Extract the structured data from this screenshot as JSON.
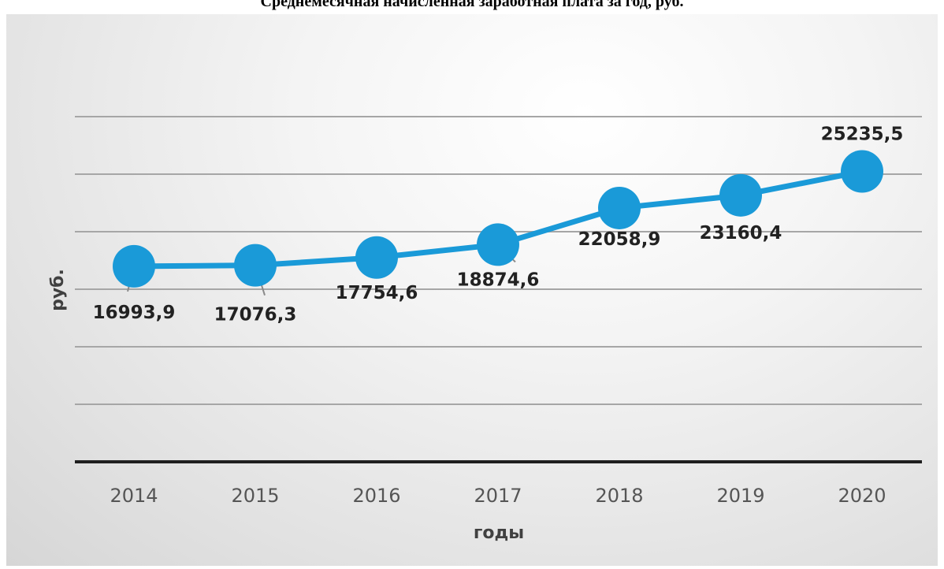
{
  "title": "Среднемесячная начисленная заработная плата за год, руб.",
  "chart_data": {
    "type": "line",
    "title": "Среднемесячная начисленная заработная плата за год, руб.",
    "xlabel": "годы",
    "ylabel": "руб.",
    "categories": [
      "2014",
      "2015",
      "2016",
      "2017",
      "2018",
      "2019",
      "2020"
    ],
    "series": [
      {
        "values": [
          16993.9,
          17076.3,
          17754.6,
          18874.6,
          22058.9,
          23160.4,
          25235.5
        ],
        "labels": [
          "16993,9",
          "17076,3",
          "17754,6",
          "18874,6",
          "22058,9",
          "23160,4",
          "25235,5"
        ]
      }
    ],
    "ylim": [
      0,
      30000
    ],
    "grid": true,
    "line_color": "#1a9ad8",
    "marker_color": "#1a9ad8",
    "gridline_color": "#a6a6a6",
    "axis_color": "#1f1f1f"
  }
}
